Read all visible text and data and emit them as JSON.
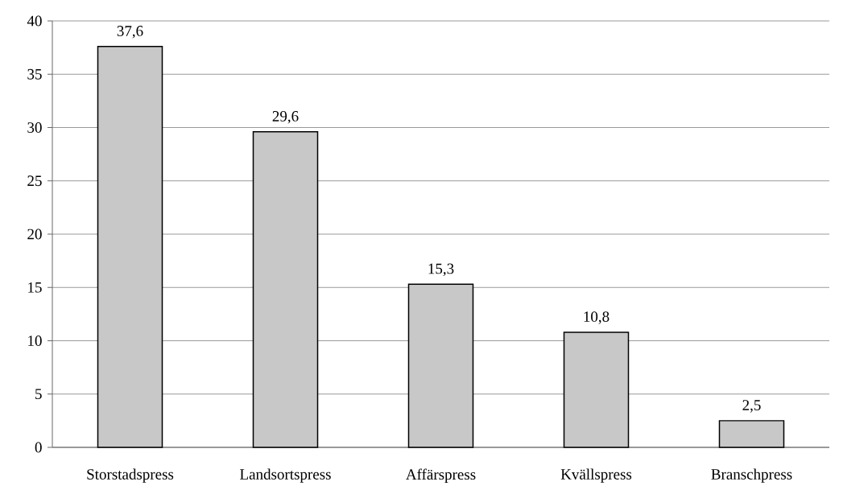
{
  "chart_data": {
    "type": "bar",
    "categories": [
      "Storstadspress",
      "Landsortspress",
      "Affärspress",
      "Kvällspress",
      "Branschpress"
    ],
    "values": [
      37.6,
      29.6,
      15.3,
      10.8,
      2.5
    ],
    "value_labels": [
      "37,6",
      "29,6",
      "15,3",
      "10,8",
      "2,5"
    ],
    "color": "#c8c8c8",
    "ylim": [
      0,
      40
    ],
    "yticks": [
      0,
      5,
      10,
      15,
      20,
      25,
      30,
      35,
      40
    ],
    "grid": "y"
  }
}
